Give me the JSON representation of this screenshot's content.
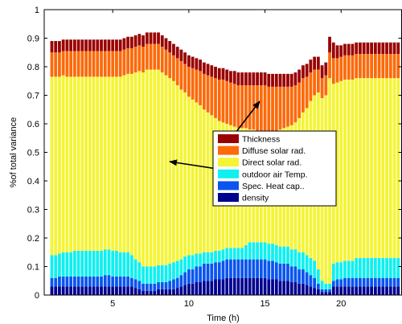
{
  "chart_data": {
    "type": "bar",
    "stacked": true,
    "xlabel": "Time (h)",
    "ylabel": "%of total variance",
    "xlim": [
      0.5,
      24
    ],
    "ylim": [
      0,
      1
    ],
    "xticks": [
      5,
      10,
      15,
      20
    ],
    "yticks": [
      0,
      0.1,
      0.2,
      0.3,
      0.4,
      0.5,
      0.6,
      0.7,
      0.8,
      0.9,
      1
    ],
    "grid": false,
    "legend_position": "center-right",
    "x": [
      1.0,
      1.25,
      1.5,
      1.75,
      2.0,
      2.25,
      2.5,
      2.75,
      3.0,
      3.25,
      3.5,
      3.75,
      4.0,
      4.25,
      4.5,
      4.75,
      5.0,
      5.25,
      5.5,
      5.75,
      6.0,
      6.25,
      6.5,
      6.75,
      7.0,
      7.25,
      7.5,
      7.75,
      8.0,
      8.25,
      8.5,
      8.75,
      9.0,
      9.25,
      9.5,
      9.75,
      10.0,
      10.25,
      10.5,
      10.75,
      11.0,
      11.25,
      11.5,
      11.75,
      12.0,
      12.25,
      12.5,
      12.75,
      13.0,
      13.25,
      13.5,
      13.75,
      14.0,
      14.25,
      14.5,
      14.75,
      15.0,
      15.25,
      15.5,
      15.75,
      16.0,
      16.25,
      16.5,
      16.75,
      17.0,
      17.25,
      17.5,
      17.75,
      18.0,
      18.25,
      18.5,
      18.75,
      19.0,
      19.25,
      19.5,
      19.75,
      20.0,
      20.25,
      20.5,
      20.75,
      21.0,
      21.25,
      21.5,
      21.75,
      22.0,
      22.25,
      22.5,
      22.75,
      23.0,
      23.25,
      23.5,
      23.75
    ],
    "series": [
      {
        "name": "density",
        "color": "#00008f",
        "values": [
          0.03,
          0.03,
          0.03,
          0.03,
          0.03,
          0.03,
          0.03,
          0.03,
          0.03,
          0.03,
          0.03,
          0.03,
          0.03,
          0.03,
          0.03,
          0.03,
          0.03,
          0.03,
          0.03,
          0.03,
          0.03,
          0.03,
          0.025,
          0.02,
          0.015,
          0.015,
          0.015,
          0.015,
          0.02,
          0.02,
          0.02,
          0.02,
          0.02,
          0.025,
          0.03,
          0.035,
          0.04,
          0.04,
          0.045,
          0.045,
          0.05,
          0.05,
          0.05,
          0.055,
          0.055,
          0.055,
          0.06,
          0.06,
          0.06,
          0.06,
          0.06,
          0.06,
          0.06,
          0.06,
          0.06,
          0.06,
          0.06,
          0.055,
          0.055,
          0.055,
          0.05,
          0.05,
          0.05,
          0.045,
          0.045,
          0.04,
          0.04,
          0.035,
          0.03,
          0.025,
          0.02,
          0.01,
          0.01,
          0.01,
          0.03,
          0.03,
          0.03,
          0.03,
          0.03,
          0.03,
          0.03,
          0.03,
          0.03,
          0.03,
          0.03,
          0.03,
          0.03,
          0.03,
          0.03,
          0.03,
          0.03,
          0.03
        ]
      },
      {
        "name": "Spec. Heat cap..",
        "color": "#0a55f0",
        "values": [
          0.03,
          0.03,
          0.035,
          0.035,
          0.035,
          0.035,
          0.035,
          0.035,
          0.035,
          0.035,
          0.035,
          0.035,
          0.035,
          0.035,
          0.04,
          0.04,
          0.035,
          0.035,
          0.035,
          0.035,
          0.035,
          0.03,
          0.03,
          0.03,
          0.025,
          0.025,
          0.025,
          0.025,
          0.025,
          0.025,
          0.025,
          0.03,
          0.035,
          0.035,
          0.04,
          0.045,
          0.05,
          0.05,
          0.055,
          0.055,
          0.06,
          0.06,
          0.06,
          0.06,
          0.06,
          0.065,
          0.065,
          0.065,
          0.065,
          0.065,
          0.065,
          0.065,
          0.065,
          0.065,
          0.065,
          0.065,
          0.065,
          0.065,
          0.065,
          0.06,
          0.06,
          0.06,
          0.06,
          0.055,
          0.055,
          0.05,
          0.05,
          0.045,
          0.04,
          0.035,
          0.02,
          0.01,
          0.01,
          0.01,
          0.02,
          0.025,
          0.025,
          0.03,
          0.03,
          0.03,
          0.03,
          0.03,
          0.03,
          0.03,
          0.03,
          0.03,
          0.03,
          0.03,
          0.03,
          0.03,
          0.03,
          0.03
        ]
      },
      {
        "name": "outdoor air Temp.",
        "color": "#10f0f0",
        "values": [
          0.08,
          0.08,
          0.08,
          0.085,
          0.085,
          0.085,
          0.09,
          0.09,
          0.09,
          0.09,
          0.09,
          0.09,
          0.09,
          0.09,
          0.09,
          0.09,
          0.09,
          0.09,
          0.085,
          0.085,
          0.085,
          0.08,
          0.07,
          0.065,
          0.06,
          0.06,
          0.06,
          0.06,
          0.06,
          0.06,
          0.06,
          0.06,
          0.06,
          0.06,
          0.055,
          0.055,
          0.05,
          0.05,
          0.045,
          0.045,
          0.04,
          0.04,
          0.04,
          0.04,
          0.04,
          0.04,
          0.04,
          0.04,
          0.04,
          0.04,
          0.04,
          0.05,
          0.06,
          0.06,
          0.06,
          0.06,
          0.06,
          0.06,
          0.06,
          0.06,
          0.06,
          0.06,
          0.06,
          0.06,
          0.06,
          0.06,
          0.06,
          0.06,
          0.06,
          0.06,
          0.05,
          0.03,
          0.02,
          0.02,
          0.06,
          0.06,
          0.06,
          0.06,
          0.06,
          0.06,
          0.07,
          0.07,
          0.07,
          0.07,
          0.07,
          0.07,
          0.07,
          0.07,
          0.07,
          0.07,
          0.07,
          0.07
        ]
      },
      {
        "name": "Direct solar rad.",
        "color": "#f4f435",
        "values": [
          0.625,
          0.625,
          0.62,
          0.62,
          0.615,
          0.615,
          0.61,
          0.61,
          0.61,
          0.61,
          0.61,
          0.61,
          0.61,
          0.61,
          0.605,
          0.605,
          0.61,
          0.61,
          0.615,
          0.62,
          0.625,
          0.635,
          0.655,
          0.67,
          0.68,
          0.69,
          0.69,
          0.69,
          0.685,
          0.675,
          0.665,
          0.65,
          0.635,
          0.615,
          0.595,
          0.575,
          0.555,
          0.545,
          0.53,
          0.52,
          0.5,
          0.49,
          0.48,
          0.465,
          0.455,
          0.445,
          0.435,
          0.43,
          0.425,
          0.42,
          0.42,
          0.41,
          0.395,
          0.395,
          0.39,
          0.39,
          0.39,
          0.39,
          0.39,
          0.4,
          0.41,
          0.415,
          0.42,
          0.435,
          0.445,
          0.47,
          0.49,
          0.515,
          0.55,
          0.58,
          0.62,
          0.64,
          0.66,
          0.72,
          0.63,
          0.63,
          0.635,
          0.635,
          0.635,
          0.635,
          0.63,
          0.63,
          0.63,
          0.63,
          0.63,
          0.63,
          0.63,
          0.63,
          0.63,
          0.63,
          0.63,
          0.63
        ]
      },
      {
        "name": "Diffuse solar rad.",
        "color": "#fc6a0a",
        "values": [
          0.085,
          0.085,
          0.085,
          0.085,
          0.09,
          0.09,
          0.09,
          0.09,
          0.09,
          0.09,
          0.09,
          0.09,
          0.09,
          0.09,
          0.09,
          0.09,
          0.09,
          0.09,
          0.09,
          0.09,
          0.09,
          0.09,
          0.09,
          0.09,
          0.09,
          0.09,
          0.09,
          0.09,
          0.09,
          0.09,
          0.09,
          0.09,
          0.09,
          0.095,
          0.1,
          0.1,
          0.105,
          0.11,
          0.115,
          0.12,
          0.125,
          0.13,
          0.135,
          0.14,
          0.145,
          0.15,
          0.15,
          0.15,
          0.15,
          0.15,
          0.15,
          0.15,
          0.155,
          0.155,
          0.16,
          0.16,
          0.16,
          0.16,
          0.16,
          0.155,
          0.15,
          0.145,
          0.14,
          0.135,
          0.13,
          0.125,
          0.12,
          0.11,
          0.1,
          0.09,
          0.08,
          0.07,
          0.07,
          0.09,
          0.09,
          0.085,
          0.085,
          0.085,
          0.085,
          0.085,
          0.085,
          0.085,
          0.085,
          0.085,
          0.085,
          0.085,
          0.085,
          0.085,
          0.085,
          0.085,
          0.085,
          0.085
        ]
      },
      {
        "name": "Thickness",
        "color": "#990000",
        "values": [
          0.04,
          0.04,
          0.04,
          0.04,
          0.04,
          0.04,
          0.04,
          0.04,
          0.04,
          0.04,
          0.04,
          0.04,
          0.04,
          0.04,
          0.04,
          0.04,
          0.04,
          0.04,
          0.04,
          0.04,
          0.04,
          0.04,
          0.04,
          0.04,
          0.04,
          0.04,
          0.04,
          0.04,
          0.04,
          0.04,
          0.04,
          0.04,
          0.04,
          0.04,
          0.04,
          0.04,
          0.04,
          0.04,
          0.04,
          0.04,
          0.04,
          0.04,
          0.04,
          0.04,
          0.04,
          0.04,
          0.04,
          0.04,
          0.045,
          0.045,
          0.045,
          0.045,
          0.045,
          0.045,
          0.045,
          0.045,
          0.045,
          0.045,
          0.045,
          0.045,
          0.045,
          0.045,
          0.045,
          0.045,
          0.045,
          0.045,
          0.045,
          0.045,
          0.045,
          0.045,
          0.045,
          0.045,
          0.045,
          0.055,
          0.055,
          0.045,
          0.04,
          0.04,
          0.04,
          0.04,
          0.04,
          0.04,
          0.04,
          0.04,
          0.04,
          0.04,
          0.04,
          0.04,
          0.04,
          0.04,
          0.04,
          0.04
        ]
      }
    ],
    "legend_order": [
      "Thickness",
      "Diffuse solar rad.",
      "Direct solar rad.",
      "outdoor air Temp.",
      "Spec. Heat cap..",
      "density"
    ]
  }
}
